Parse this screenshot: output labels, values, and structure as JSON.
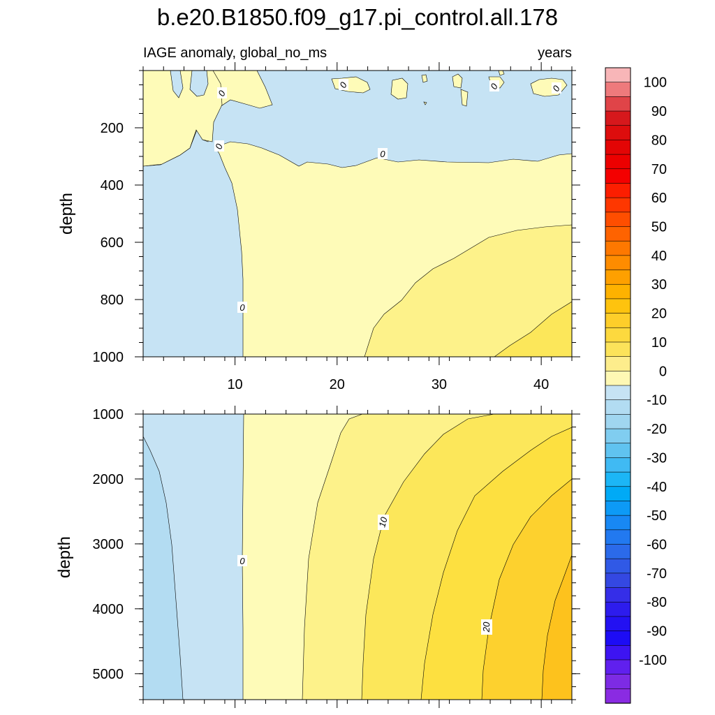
{
  "figure": {
    "title": "b.e20.B1850.f09_g17.pi_control.all.178",
    "left_subtitle": "IAGE anomaly, global_no_ms",
    "right_subtitle": "years"
  },
  "chart_data": [
    {
      "type": "heatmap",
      "panel": "upper",
      "ylabel": "depth",
      "xlabel": "",
      "x_range": [
        1,
        43
      ],
      "y_range": [
        0,
        1000
      ],
      "y_inverted": true,
      "xticks": [
        10,
        20,
        30,
        40
      ],
      "yticks": [
        200,
        400,
        600,
        800,
        1000
      ],
      "contour_labels": [
        "0",
        "0",
        "0",
        "0",
        "0",
        "0",
        "0"
      ],
      "regions": [
        {
          "fill_range": [
            -10,
            0
          ],
          "color": "#c6e3f4",
          "description_value": -5
        },
        {
          "fill_range": [
            0,
            5
          ],
          "color": "#fefbb8",
          "description_value": 2.5
        },
        {
          "fill_range": [
            5,
            10
          ],
          "color": "#fdf28a",
          "description_value": 7.5
        },
        {
          "fill_range": [
            10,
            15
          ],
          "color": "#fce75a",
          "description_value": 12.5
        }
      ]
    },
    {
      "type": "heatmap",
      "panel": "lower",
      "ylabel": "depth",
      "xlabel": "",
      "x_range": [
        1,
        43
      ],
      "y_range": [
        1000,
        5400
      ],
      "y_inverted": true,
      "xticks": [
        10,
        20,
        30,
        40
      ],
      "yticks": [
        1000,
        2000,
        3000,
        4000,
        5000
      ],
      "contour_labels": [
        "0",
        "10",
        "20"
      ],
      "regions": [
        {
          "fill_range": [
            -10,
            -5
          ],
          "color": "#b3dcf2",
          "description_value": -7.5
        },
        {
          "fill_range": [
            -5,
            0
          ],
          "color": "#c6e3f4",
          "description_value": -2.5
        },
        {
          "fill_range": [
            0,
            5
          ],
          "color": "#fefbb8",
          "description_value": 2.5
        },
        {
          "fill_range": [
            5,
            10
          ],
          "color": "#fdf28a",
          "description_value": 7.5
        },
        {
          "fill_range": [
            10,
            15
          ],
          "color": "#fce75a",
          "description_value": 12.5
        },
        {
          "fill_range": [
            15,
            20
          ],
          "color": "#fde040",
          "description_value": 17.5
        },
        {
          "fill_range": [
            20,
            25
          ],
          "color": "#fdd12e",
          "description_value": 22.5
        },
        {
          "fill_range": [
            25,
            30
          ],
          "color": "#fdc21d",
          "description_value": 27.5
        }
      ]
    }
  ],
  "colorbar": {
    "labels": [
      "100",
      "90",
      "80",
      "70",
      "60",
      "50",
      "40",
      "30",
      "20",
      "10",
      "0",
      "-10",
      "-20",
      "-30",
      "-40",
      "-50",
      "-60",
      "-70",
      "-80",
      "-90",
      "-100"
    ],
    "colors": [
      "#f8b6b8",
      "#ee7a7c",
      "#e04448",
      "#d6181c",
      "#dd0d0d",
      "#e30505",
      "#ec0000",
      "#f40000",
      "#fc1e00",
      "#fe3700",
      "#fe4e00",
      "#fe6300",
      "#fe7800",
      "#fe8c00",
      "#fea000",
      "#feb200",
      "#fec30e",
      "#fece2a",
      "#fdd93e",
      "#fce35a",
      "#fded8c",
      "#fef8b4",
      "#c6e3f4",
      "#b2dcf2",
      "#a0d6f0",
      "#80cdf0",
      "#60c3f0",
      "#40baf3",
      "#1cb6f6",
      "#00aaf6",
      "#0d9af6",
      "#1888f4",
      "#2279f0",
      "#2b6aea",
      "#3059e6",
      "#3448e2",
      "#352ee8",
      "#2d1ced",
      "#2311f2",
      "#1d0cf5",
      "#3d14f2",
      "#6020ee",
      "#7d2be4",
      "#8a2be2"
    ]
  }
}
